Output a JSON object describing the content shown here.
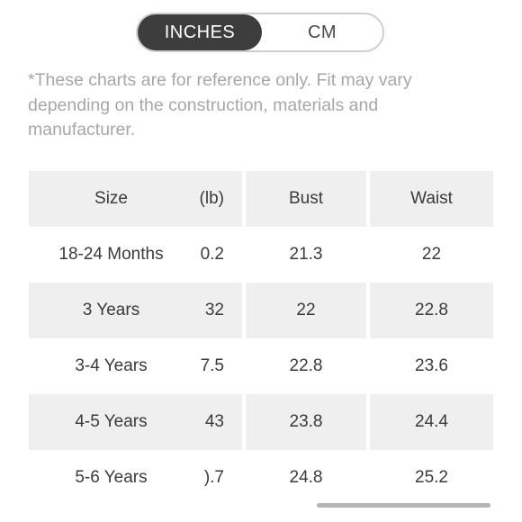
{
  "unit_toggle": {
    "options": [
      {
        "label": "INCHES",
        "selected": true
      },
      {
        "label": "CM",
        "selected": false
      }
    ]
  },
  "disclaimer": "*These charts are for reference only. Fit may vary depending on the construction, materials and manufacturer.",
  "table": {
    "headers": {
      "size": "Size",
      "weight": "(lb)",
      "bust": "Bust",
      "waist": "Waist"
    },
    "rows": [
      {
        "size": "18-24 Months",
        "weight": "0.2",
        "bust": "21.3",
        "waist": "22"
      },
      {
        "size": "3 Years",
        "weight": "32",
        "bust": "22",
        "waist": "22.8"
      },
      {
        "size": "3-4 Years",
        "weight": "7.5",
        "bust": "22.8",
        "waist": "23.6"
      },
      {
        "size": "4-5 Years",
        "weight": "43",
        "bust": "23.8",
        "waist": "24.4"
      },
      {
        "size": "5-6 Years",
        "weight": ").7",
        "bust": "24.8",
        "waist": "25.2"
      }
    ]
  },
  "colors": {
    "toggle_active_bg": "#3d3d3d",
    "row_shade": "#efefef",
    "disclaimer_text": "#a7a7a7"
  }
}
